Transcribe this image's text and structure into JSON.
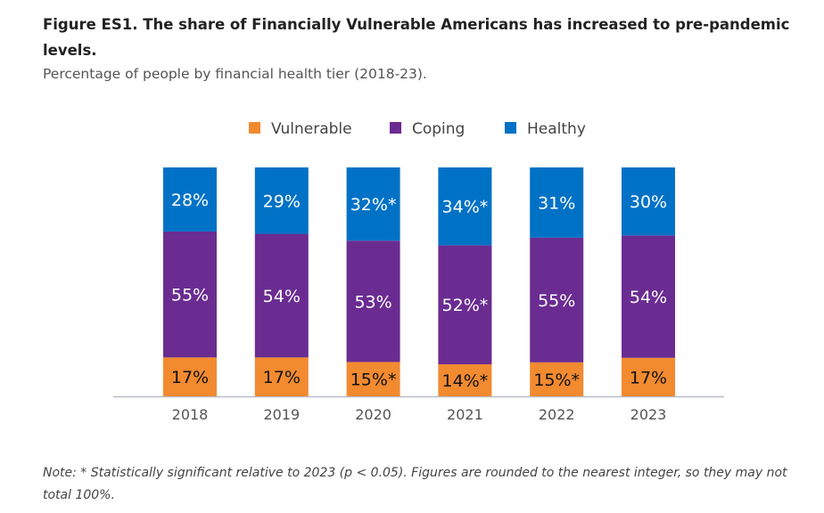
{
  "chart_data": {
    "type": "bar",
    "stacked": true,
    "title": "Figure ES1. The share of Financially Vulnerable Americans has increased to pre-pandemic levels.",
    "subtitle": "Percentage of people by financial health tier (2018-23).",
    "categories": [
      "2018",
      "2019",
      "2020",
      "2021",
      "2022",
      "2023"
    ],
    "legend_position": "top",
    "ylim": [
      0,
      100
    ],
    "series": [
      {
        "name": "Vulnerable",
        "color": "#F28A30",
        "values": [
          17,
          17,
          15,
          14,
          15,
          17
        ],
        "labels": [
          "17%",
          "17%",
          "15%*",
          "14%*",
          "15%*",
          "17%"
        ]
      },
      {
        "name": "Coping",
        "color": "#6A2C91",
        "values": [
          55,
          54,
          53,
          52,
          55,
          54
        ],
        "labels": [
          "55%",
          "54%",
          "53%",
          "52%*",
          "55%",
          "54%"
        ]
      },
      {
        "name": "Healthy",
        "color": "#0072C6",
        "values": [
          28,
          29,
          32,
          34,
          31,
          30
        ],
        "labels": [
          "28%",
          "29%",
          "32%*",
          "34%*",
          "31%",
          "30%"
        ]
      }
    ],
    "note": "Note: * Statistically significant relative to 2023 (p < 0.05). Figures are rounded to the nearest integer, so they may not total 100%."
  }
}
